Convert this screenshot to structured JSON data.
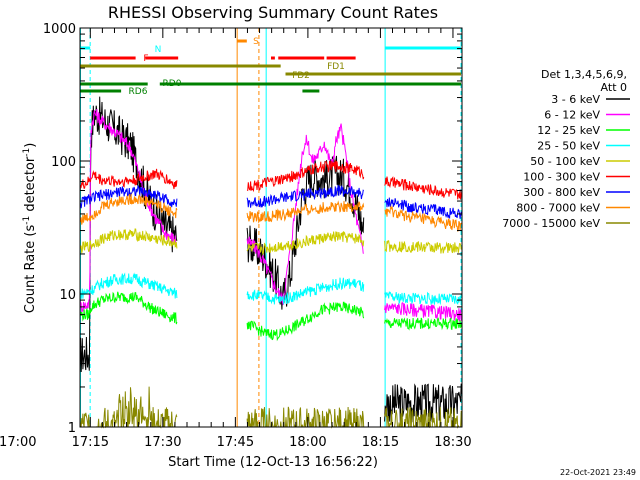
{
  "chart_data": {
    "type": "line",
    "title": "RHESSI Observing Summary Count Rates",
    "xlabel": "Start Time (12-Oct-13 16:56:22)",
    "ylabel": "Count Rate (s⁻¹ detector⁻¹)",
    "ylabel_parts": [
      "Count Rate (s",
      "-1",
      " detector",
      "-1",
      ")"
    ],
    "y_scale": "log",
    "xlim_minutes": [
      16.5,
      95.5
    ],
    "ylim": [
      1,
      1000
    ],
    "x_ticks": [
      {
        "label": "17:00",
        "minute": 3.63
      },
      {
        "label": "17:15",
        "minute": 18.63
      },
      {
        "label": "17:30",
        "minute": 33.63
      },
      {
        "label": "17:45",
        "minute": 48.63
      },
      {
        "label": "18:00",
        "minute": 63.63
      },
      {
        "label": "18:15",
        "minute": 78.63
      },
      {
        "label": "18:30",
        "minute": 93.63
      }
    ],
    "y_ticks": [
      {
        "label": "1",
        "value": 1
      },
      {
        "label": "10",
        "value": 10
      },
      {
        "label": "100",
        "value": 100
      },
      {
        "label": "1000",
        "value": 1000
      }
    ],
    "legend": {
      "position": "right",
      "header": [
        "Det 1,3,4,5,6,9,",
        "Att 0"
      ],
      "entries": [
        {
          "label": "3 - 6 keV",
          "color": "#000000"
        },
        {
          "label": "6 - 12 keV",
          "color": "#ff00ff"
        },
        {
          "label": "12 - 25 keV",
          "color": "#00ff00"
        },
        {
          "label": "25 - 50 keV",
          "color": "#00ffff"
        },
        {
          "label": "50 - 100 keV",
          "color": "#cccc00"
        },
        {
          "label": "100 - 300 keV",
          "color": "#ff0000"
        },
        {
          "label": "300 - 800 keV",
          "color": "#0000ff"
        },
        {
          "label": "800 - 7000 keV",
          "color": "#ff8800"
        },
        {
          "label": "7000 - 15000 keV",
          "color": "#888800"
        }
      ]
    },
    "gaps_minutes": [
      [
        36.6,
        51.0
      ],
      [
        75.2,
        79.5
      ]
    ],
    "series": [
      {
        "name": "3 - 6 keV",
        "color": "#000000",
        "points": [
          [
            16.5,
            3.5
          ],
          [
            18.5,
            3.5
          ],
          [
            18.7,
            160
          ],
          [
            19.5,
            230
          ],
          [
            21,
            210
          ],
          [
            23,
            180
          ],
          [
            25,
            155
          ],
          [
            27,
            130
          ],
          [
            28.5,
            90
          ],
          [
            30,
            60
          ],
          [
            32,
            42
          ],
          [
            34,
            32
          ],
          [
            36.5,
            27
          ],
          [
            51,
            25
          ],
          [
            53,
            22
          ],
          [
            55,
            18
          ],
          [
            57,
            13
          ],
          [
            58.5,
            9
          ],
          [
            60,
            14
          ],
          [
            61.5,
            32
          ],
          [
            62.5,
            55
          ],
          [
            63.5,
            70
          ],
          [
            65,
            78
          ],
          [
            67,
            72
          ],
          [
            69,
            80
          ],
          [
            71,
            75
          ],
          [
            72.5,
            60
          ],
          [
            74,
            42
          ],
          [
            75.2,
            30
          ],
          [
            79.5,
            1.5
          ],
          [
            95.5,
            1.5
          ]
        ]
      },
      {
        "name": "6 - 12 keV",
        "color": "#ff00ff",
        "points": [
          [
            16.5,
            8
          ],
          [
            18.5,
            8.5
          ],
          [
            18.7,
            170
          ],
          [
            19.5,
            230
          ],
          [
            21,
            200
          ],
          [
            23,
            175
          ],
          [
            25,
            150
          ],
          [
            27,
            125
          ],
          [
            28.5,
            85
          ],
          [
            30,
            55
          ],
          [
            32,
            38
          ],
          [
            34,
            29
          ],
          [
            36.5,
            25
          ],
          [
            51,
            25
          ],
          [
            53,
            22
          ],
          [
            55,
            16
          ],
          [
            57,
            11
          ],
          [
            58.5,
            9
          ],
          [
            60,
            22
          ],
          [
            61.5,
            60
          ],
          [
            62.5,
            120
          ],
          [
            63.5,
            145
          ],
          [
            64.5,
            100
          ],
          [
            66,
            115
          ],
          [
            67,
            140
          ],
          [
            68.5,
            90
          ],
          [
            69.5,
            145
          ],
          [
            70.5,
            175
          ],
          [
            71.5,
            110
          ],
          [
            72.5,
            60
          ],
          [
            74,
            32
          ],
          [
            75.2,
            20
          ],
          [
            79.5,
            8
          ],
          [
            95.5,
            7
          ]
        ]
      },
      {
        "name": "12 - 25 keV",
        "color": "#00ff00",
        "points": [
          [
            16.5,
            7
          ],
          [
            18.5,
            7
          ],
          [
            18.7,
            8
          ],
          [
            21,
            9
          ],
          [
            24,
            9.5
          ],
          [
            28,
            9.5
          ],
          [
            32,
            7.5
          ],
          [
            36.5,
            6.5
          ],
          [
            51,
            6
          ],
          [
            55,
            5
          ],
          [
            58,
            5
          ],
          [
            60,
            5.5
          ],
          [
            62,
            6
          ],
          [
            66,
            7.5
          ],
          [
            70,
            8
          ],
          [
            74,
            7.5
          ],
          [
            75.2,
            7
          ],
          [
            79.5,
            6
          ],
          [
            95.5,
            6
          ]
        ]
      },
      {
        "name": "25 - 50 keV",
        "color": "#00ffff",
        "points": [
          [
            16.5,
            10
          ],
          [
            18.5,
            10.5
          ],
          [
            21,
            12
          ],
          [
            24,
            13
          ],
          [
            28,
            13
          ],
          [
            32,
            11.5
          ],
          [
            36.5,
            10
          ],
          [
            51,
            10
          ],
          [
            55,
            9.5
          ],
          [
            58,
            9
          ],
          [
            62,
            10
          ],
          [
            66,
            11
          ],
          [
            70,
            12
          ],
          [
            74,
            12
          ],
          [
            75.2,
            11
          ],
          [
            79.5,
            9.5
          ],
          [
            95.5,
            9
          ]
        ]
      },
      {
        "name": "50 - 100 keV",
        "color": "#cccc00",
        "points": [
          [
            16.5,
            22
          ],
          [
            18.5,
            23
          ],
          [
            21,
            26
          ],
          [
            24,
            28
          ],
          [
            28,
            28
          ],
          [
            32,
            26
          ],
          [
            36.5,
            24
          ],
          [
            51,
            22
          ],
          [
            55,
            22
          ],
          [
            58,
            23
          ],
          [
            62,
            24
          ],
          [
            66,
            26
          ],
          [
            70,
            27
          ],
          [
            74,
            26
          ],
          [
            75.2,
            25
          ],
          [
            79.5,
            23
          ],
          [
            95.5,
            22
          ]
        ]
      },
      {
        "name": "100 - 300 keV",
        "color": "#ff0000",
        "points": [
          [
            16.5,
            65
          ],
          [
            18.5,
            70
          ],
          [
            19,
            80
          ],
          [
            21,
            72
          ],
          [
            24,
            70
          ],
          [
            28,
            72
          ],
          [
            32,
            80
          ],
          [
            34,
            75
          ],
          [
            36.5,
            65
          ],
          [
            51,
            65
          ],
          [
            55,
            68
          ],
          [
            58,
            72
          ],
          [
            62,
            80
          ],
          [
            66,
            90
          ],
          [
            70,
            92
          ],
          [
            74,
            85
          ],
          [
            75.2,
            80
          ],
          [
            79.5,
            70
          ],
          [
            85,
            65
          ],
          [
            95.5,
            55
          ]
        ]
      },
      {
        "name": "300 - 800 keV",
        "color": "#0000ff",
        "points": [
          [
            16.5,
            48
          ],
          [
            18.5,
            52
          ],
          [
            21,
            55
          ],
          [
            24,
            58
          ],
          [
            28,
            60
          ],
          [
            32,
            56
          ],
          [
            34,
            52
          ],
          [
            36.5,
            48
          ],
          [
            51,
            48
          ],
          [
            55,
            50
          ],
          [
            58,
            52
          ],
          [
            62,
            55
          ],
          [
            66,
            58
          ],
          [
            70,
            60
          ],
          [
            74,
            58
          ],
          [
            75.2,
            55
          ],
          [
            79.5,
            50
          ],
          [
            85,
            45
          ],
          [
            95.5,
            40
          ]
        ]
      },
      {
        "name": "800 - 7000 keV",
        "color": "#ff8800",
        "points": [
          [
            16.5,
            36
          ],
          [
            18.5,
            38
          ],
          [
            21,
            45
          ],
          [
            24,
            50
          ],
          [
            28,
            52
          ],
          [
            32,
            48
          ],
          [
            34,
            44
          ],
          [
            36.5,
            40
          ],
          [
            51,
            38
          ],
          [
            55,
            38
          ],
          [
            58,
            39
          ],
          [
            62,
            42
          ],
          [
            66,
            44
          ],
          [
            70,
            46
          ],
          [
            74,
            45
          ],
          [
            75.2,
            44
          ],
          [
            79.5,
            42
          ],
          [
            85,
            38
          ],
          [
            95.5,
            32
          ]
        ]
      },
      {
        "name": "7000 - 15000 keV",
        "color": "#888800",
        "points": [
          [
            16.5,
            1
          ],
          [
            24.5,
            1
          ],
          [
            24.6,
            1.6
          ],
          [
            25,
            1
          ],
          [
            26,
            1.6
          ],
          [
            26.2,
            1
          ],
          [
            27,
            1.6
          ],
          [
            27.2,
            1
          ],
          [
            28,
            1.6
          ],
          [
            28.3,
            1
          ],
          [
            29,
            1.6
          ],
          [
            29.2,
            1
          ],
          [
            30,
            1.6
          ],
          [
            30.3,
            1
          ],
          [
            30.9,
            1.6
          ],
          [
            31.1,
            1
          ],
          [
            95.5,
            1
          ]
        ]
      }
    ],
    "flags": {
      "position": "top",
      "items": [
        {
          "label": "N",
          "color": "#00ffff"
        },
        {
          "label": "S",
          "color": "#ff8800"
        },
        {
          "label": "F",
          "color": "#ff0000"
        },
        {
          "label": "FD1",
          "color": "#888800"
        },
        {
          "label": "FD2",
          "color": "#888800"
        },
        {
          "label": "RD0",
          "color": "#008000"
        },
        {
          "label": "RD6",
          "color": "#008000"
        }
      ]
    },
    "annotations": [
      "Start Time (12-Oct-13 16:56:22)"
    ]
  },
  "footer": {
    "date": "22-Oct-2021 23:49"
  }
}
